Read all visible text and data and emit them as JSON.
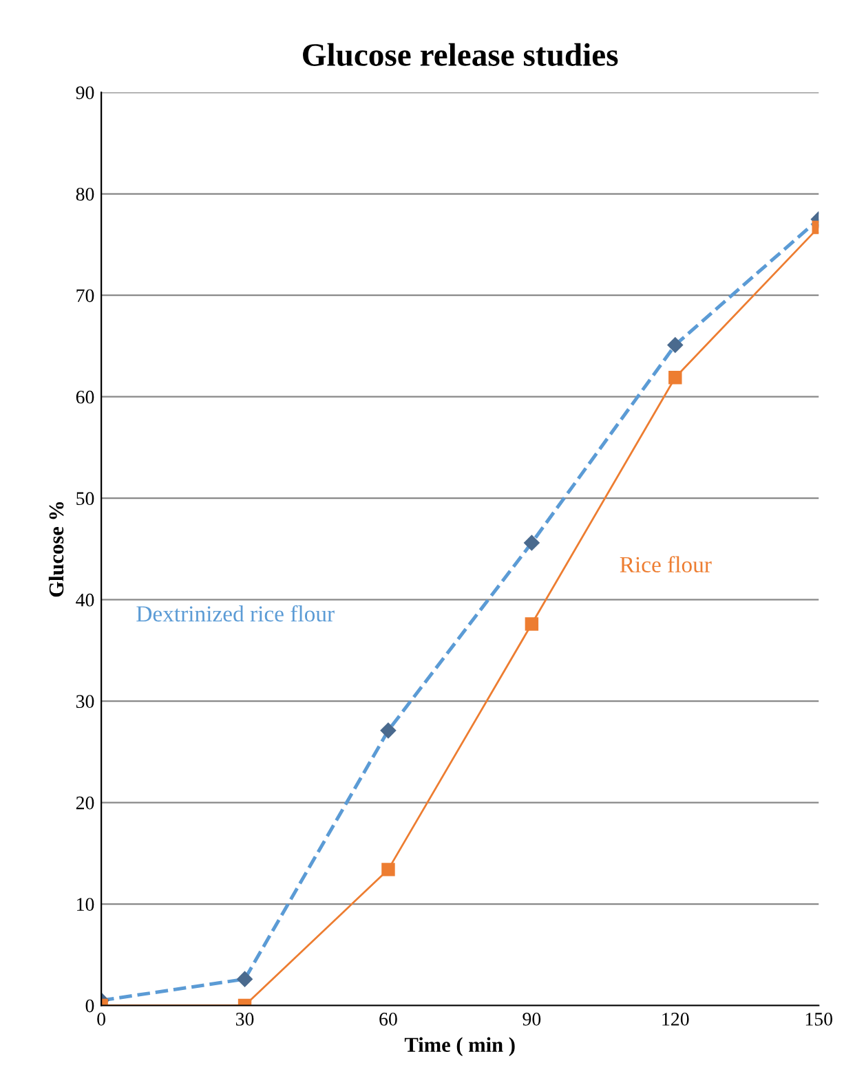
{
  "chart_data": {
    "type": "line",
    "title": "Glucose release studies",
    "xlabel": "Time ( min )",
    "ylabel": "Glucose %",
    "x": [
      0,
      30,
      60,
      90,
      120,
      150
    ],
    "series": [
      {
        "name": "Dextrinized rice flour",
        "color": "#5b9bd5",
        "marker": "diamond",
        "line_style": "dashed",
        "values": [
          0.5,
          2.6,
          27.1,
          45.6,
          65.1,
          77.5
        ]
      },
      {
        "name": "Rice flour",
        "color": "#ed7d31",
        "marker": "square",
        "line_style": "solid",
        "values": [
          0,
          0,
          13.4,
          37.6,
          61.9,
          76.7
        ]
      }
    ],
    "xlim": [
      0,
      150
    ],
    "xticks": [
      0,
      30,
      60,
      90,
      120,
      150
    ],
    "ylim": [
      0,
      90
    ],
    "yticks": [
      0,
      10,
      20,
      30,
      40,
      50,
      60,
      70,
      80,
      90
    ],
    "grid": "y",
    "legend": false
  }
}
